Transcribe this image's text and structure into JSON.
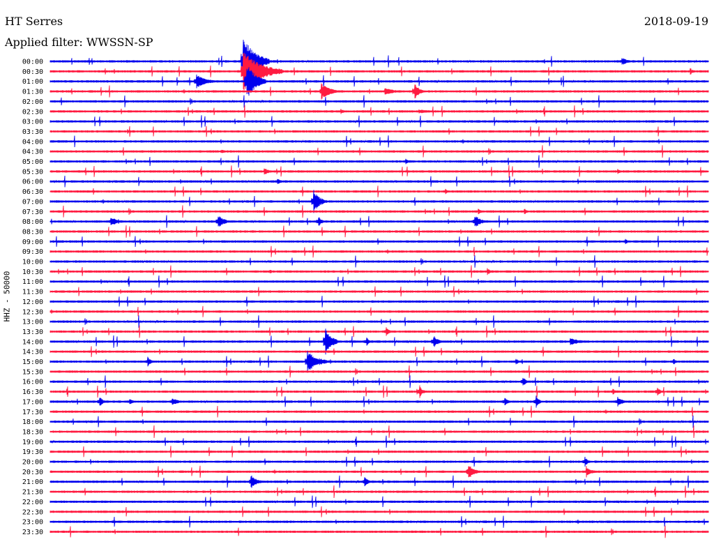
{
  "header": {
    "station": "HT Serres",
    "date": "2018-09-19",
    "filter": "Applied filter: WWSSN-SP"
  },
  "chart_data": {
    "type": "line",
    "title": "",
    "ylabel": "HHZ - 50000",
    "series_colors": [
      "#0000ee",
      "#ff1a40"
    ],
    "rows": [
      "00:00",
      "00:30",
      "01:00",
      "01:30",
      "02:00",
      "02:30",
      "03:00",
      "03:30",
      "04:00",
      "04:30",
      "05:00",
      "05:30",
      "06:00",
      "06:30",
      "07:00",
      "07:30",
      "08:00",
      "08:30",
      "09:00",
      "09:30",
      "10:00",
      "10:30",
      "11:00",
      "11:30",
      "12:00",
      "12:30",
      "13:00",
      "13:30",
      "14:00",
      "14:30",
      "15:00",
      "15:30",
      "16:00",
      "16:30",
      "17:00",
      "17:30",
      "18:00",
      "18:30",
      "19:00",
      "19:30",
      "20:00",
      "20:30",
      "21:00",
      "21:30",
      "22:00",
      "22:30",
      "23:00",
      "23:30"
    ],
    "events": [
      {
        "row": "00:00",
        "x": 0.293,
        "amp": 36,
        "dur": 0.04
      },
      {
        "row": "00:00",
        "x": 0.868,
        "amp": 6,
        "dur": 0.02
      },
      {
        "row": "00:30",
        "x": 0.293,
        "amp": 30,
        "dur": 0.06
      },
      {
        "row": "00:30",
        "x": 0.972,
        "amp": 5,
        "dur": 0.01
      },
      {
        "row": "01:00",
        "x": 0.222,
        "amp": 12,
        "dur": 0.03
      },
      {
        "row": "01:00",
        "x": 0.298,
        "amp": 28,
        "dur": 0.03
      },
      {
        "row": "01:30",
        "x": 0.412,
        "amp": 12,
        "dur": 0.03
      },
      {
        "row": "01:30",
        "x": 0.508,
        "amp": 6,
        "dur": 0.03
      },
      {
        "row": "01:30",
        "x": 0.553,
        "amp": 14,
        "dur": 0.015
      },
      {
        "row": "02:30",
        "x": 0.441,
        "amp": 5,
        "dur": 0.01
      },
      {
        "row": "02:30",
        "x": 0.56,
        "amp": 3,
        "dur": 0.05
      },
      {
        "row": "03:30",
        "x": 0.117,
        "amp": 4,
        "dur": 0.01
      },
      {
        "row": "04:30",
        "x": 0.26,
        "amp": 3,
        "dur": 0.02
      },
      {
        "row": "05:00",
        "x": 0.54,
        "amp": 5,
        "dur": 0.01
      },
      {
        "row": "05:30",
        "x": 0.325,
        "amp": 5,
        "dur": 0.02
      },
      {
        "row": "05:30",
        "x": 0.862,
        "amp": 4,
        "dur": 0.01
      },
      {
        "row": "06:00",
        "x": 0.345,
        "amp": 6,
        "dur": 0.01
      },
      {
        "row": "06:30",
        "x": 0.6,
        "amp": 5,
        "dur": 0.01
      },
      {
        "row": "07:00",
        "x": 0.4,
        "amp": 18,
        "dur": 0.02
      },
      {
        "row": "07:30",
        "x": 0.65,
        "amp": 5,
        "dur": 0.01
      },
      {
        "row": "07:30",
        "x": 0.72,
        "amp": 5,
        "dur": 0.01
      },
      {
        "row": "08:00",
        "x": 0.092,
        "amp": 7,
        "dur": 0.025
      },
      {
        "row": "08:00",
        "x": 0.255,
        "amp": 10,
        "dur": 0.02
      },
      {
        "row": "08:00",
        "x": 0.407,
        "amp": 10,
        "dur": 0.01
      },
      {
        "row": "08:00",
        "x": 0.645,
        "amp": 10,
        "dur": 0.02
      },
      {
        "row": "09:00",
        "x": 0.873,
        "amp": 5,
        "dur": 0.01
      },
      {
        "row": "10:30",
        "x": 0.333,
        "amp": 4,
        "dur": 0.01
      },
      {
        "row": "10:30",
        "x": 0.664,
        "amp": 6,
        "dur": 0.01
      },
      {
        "row": "13:30",
        "x": 0.51,
        "amp": 8,
        "dur": 0.01
      },
      {
        "row": "14:00",
        "x": 0.418,
        "amp": 22,
        "dur": 0.02
      },
      {
        "row": "14:00",
        "x": 0.48,
        "amp": 8,
        "dur": 0.01
      },
      {
        "row": "14:00",
        "x": 0.582,
        "amp": 10,
        "dur": 0.015
      },
      {
        "row": "14:00",
        "x": 0.79,
        "amp": 5,
        "dur": 0.04
      },
      {
        "row": "15:00",
        "x": 0.148,
        "amp": 8,
        "dur": 0.01
      },
      {
        "row": "15:00",
        "x": 0.39,
        "amp": 16,
        "dur": 0.035
      },
      {
        "row": "15:00",
        "x": 0.707,
        "amp": 6,
        "dur": 0.01
      },
      {
        "row": "15:00",
        "x": 0.946,
        "amp": 6,
        "dur": 0.01
      },
      {
        "row": "16:00",
        "x": 0.718,
        "amp": 8,
        "dur": 0.01
      },
      {
        "row": "16:30",
        "x": 0.561,
        "amp": 10,
        "dur": 0.01
      },
      {
        "row": "16:30",
        "x": 0.854,
        "amp": 6,
        "dur": 0.01
      },
      {
        "row": "16:30",
        "x": 0.922,
        "amp": 8,
        "dur": 0.01
      },
      {
        "row": "17:00",
        "x": 0.075,
        "amp": 9,
        "dur": 0.01
      },
      {
        "row": "17:00",
        "x": 0.12,
        "amp": 6,
        "dur": 0.01
      },
      {
        "row": "17:00",
        "x": 0.185,
        "amp": 6,
        "dur": 0.02
      },
      {
        "row": "17:00",
        "x": 0.69,
        "amp": 9,
        "dur": 0.01
      },
      {
        "row": "17:00",
        "x": 0.738,
        "amp": 10,
        "dur": 0.01
      },
      {
        "row": "17:00",
        "x": 0.862,
        "amp": 8,
        "dur": 0.015
      },
      {
        "row": "20:00",
        "x": 0.812,
        "amp": 8,
        "dur": 0.01
      },
      {
        "row": "20:30",
        "x": 0.635,
        "amp": 12,
        "dur": 0.02
      },
      {
        "row": "20:30",
        "x": 0.815,
        "amp": 6,
        "dur": 0.02
      },
      {
        "row": "21:00",
        "x": 0.305,
        "amp": 10,
        "dur": 0.02
      },
      {
        "row": "21:00",
        "x": 0.477,
        "amp": 8,
        "dur": 0.015
      }
    ]
  }
}
